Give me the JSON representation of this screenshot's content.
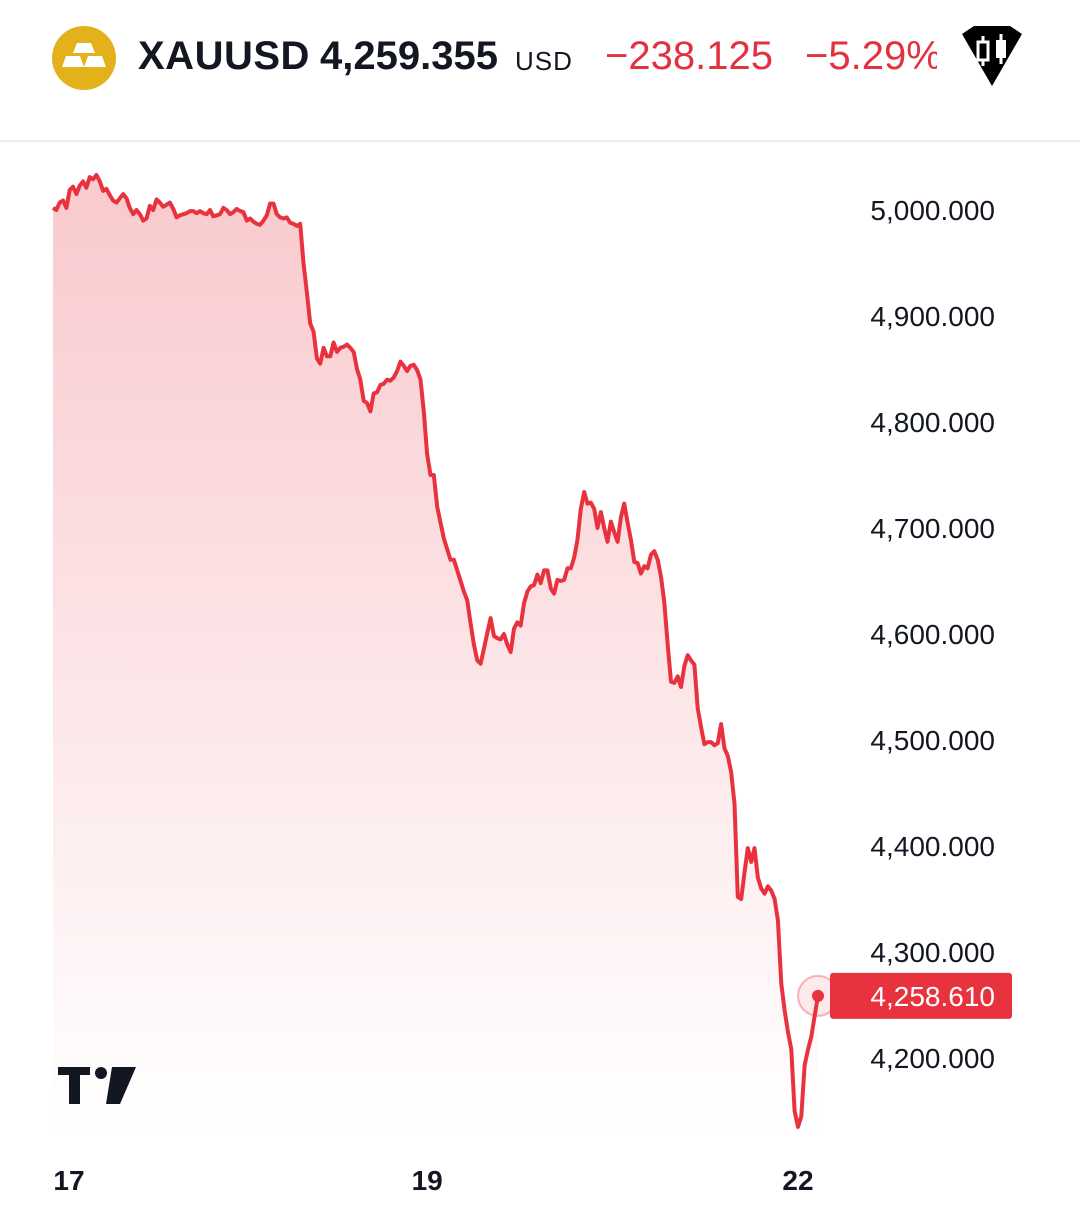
{
  "header": {
    "symbol": "XAUUSD",
    "price": "4,259.355",
    "currency": "USD",
    "change": "−238.125",
    "change_percent": "−5.29%",
    "logo_icon": "gold-bars-icon",
    "badge_icon": "candlestick-diamond-icon"
  },
  "colors": {
    "line": "#e8333f",
    "area_top": "#f9c9cd",
    "area_bottom": "#ffffff",
    "negative": "#e0323f",
    "logo": "#e3b21b",
    "label_bg": "#e8333f"
  },
  "watermark_icon": "tradingview-logo-icon",
  "chart_data": {
    "type": "area",
    "title": "",
    "xlabel": "",
    "ylabel": "",
    "x_ticks": [
      "17",
      "19",
      "22"
    ],
    "y_ticks": [
      "5,000.000",
      "4,900.000",
      "4,800.000",
      "4,700.000",
      "4,600.000",
      "4,500.000",
      "4,400.000",
      "4,300.000",
      "4,200.000"
    ],
    "ylim": [
      4180,
      5040
    ],
    "last_value_label": "4,258.610",
    "last_value": 4258.61,
    "series": [
      {
        "values": [
          5002,
          5000,
          5007,
          5009,
          5002,
          5019,
          5022,
          5015,
          5023,
          5027,
          5021,
          5031,
          5029,
          5033,
          5027,
          5018,
          5020,
          5014,
          5009,
          5007,
          5011,
          5015,
          5011,
          5002,
          4996,
          5000,
          4996,
          4990,
          4992,
          5004,
          5000,
          5010,
          5007,
          5003,
          5005,
          5007,
          5001,
          4993,
          4995,
          4996,
          4997,
          4999,
          4999,
          4997,
          4999,
          4997,
          4996,
          5000,
          4994,
          4995,
          4996,
          5002,
          5000,
          4996,
          4998,
          5001,
          4999,
          4998,
          4990,
          4992,
          4989,
          4987,
          4986,
          4990,
          4995,
          5006,
          5006,
          4996,
          4993,
          4992,
          4993,
          4988,
          4987,
          4985,
          4987,
          4950,
          4922,
          4893,
          4885,
          4860,
          4855,
          4870,
          4862,
          4862,
          4875,
          4866,
          4870,
          4871,
          4873,
          4870,
          4866,
          4850,
          4840,
          4820,
          4818,
          4810,
          4827,
          4828,
          4835,
          4836,
          4840,
          4839,
          4842,
          4848,
          4857,
          4853,
          4848,
          4853,
          4854,
          4849,
          4840,
          4810,
          4770,
          4750,
          4750,
          4720,
          4705,
          4690,
          4680,
          4670,
          4670,
          4660,
          4650,
          4640,
          4632,
          4610,
          4590,
          4575,
          4572,
          4586,
          4601,
          4615,
          4598,
          4596,
          4595,
          4600,
          4590,
          4583,
          4605,
          4611,
          4608,
          4629,
          4640,
          4645,
          4646,
          4656,
          4648,
          4660,
          4660,
          4643,
          4638,
          4651,
          4650,
          4651,
          4662,
          4662,
          4672,
          4689,
          4718,
          4734,
          4723,
          4724,
          4718,
          4700,
          4715,
          4700,
          4687,
          4706,
          4696,
          4687,
          4710,
          4723,
          4705,
          4689,
          4668,
          4667,
          4657,
          4664,
          4662,
          4675,
          4678,
          4670,
          4654,
          4630,
          4590,
          4555,
          4554,
          4560,
          4550,
          4570,
          4580,
          4575,
          4571,
          4530,
          4512,
          4496,
          4498,
          4498,
          4495,
          4497,
          4515,
          4492,
          4485,
          4470,
          4440,
          4352,
          4350,
          4375,
          4398,
          4385,
          4398,
          4370,
          4360,
          4355,
          4362,
          4358,
          4350,
          4330,
          4270,
          4245,
          4225,
          4208,
          4150,
          4135,
          4145,
          4193,
          4208,
          4220,
          4240,
          4258.61
        ]
      }
    ],
    "grid": false,
    "legend": "none"
  }
}
